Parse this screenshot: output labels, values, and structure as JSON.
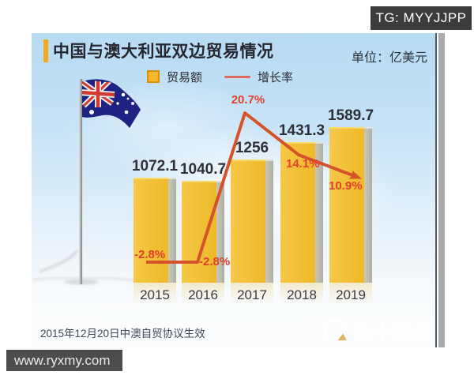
{
  "badges": {
    "tg": "TG: MYYJJPP",
    "watermark": "www.ryxmy.com"
  },
  "chart": {
    "title": "中国与澳大利亚双边贸易情况",
    "unit_label": "单位：亿美元",
    "legend": {
      "bar_label": "贸易额",
      "line_label": "增长率"
    },
    "footnote": "2015年12月20日中澳自贸协议生效",
    "logo_text": "金十数据"
  },
  "chart_data": {
    "type": "bar",
    "title": "中国与澳大利亚双边贸易情况",
    "categories": [
      "2015",
      "2016",
      "2017",
      "2018",
      "2019"
    ],
    "series": [
      {
        "name": "贸易额",
        "type": "bar",
        "unit": "亿美元",
        "color": "#F2C136",
        "values": [
          1072.1,
          1040.7,
          1256,
          1431.3,
          1589.7
        ],
        "labels": [
          "1072.1",
          "1040.7",
          "1256",
          "1431.3",
          "1589.7"
        ]
      },
      {
        "name": "增长率",
        "type": "line",
        "unit": "%",
        "color": "#D5532B",
        "values": [
          -2.8,
          -2.8,
          20.7,
          14.1,
          10.9
        ],
        "labels": [
          "-2.8%",
          "-2.8%",
          "20.7%",
          "14.1%",
          "10.9%"
        ]
      }
    ],
    "legend_position": "top",
    "grid": false
  }
}
